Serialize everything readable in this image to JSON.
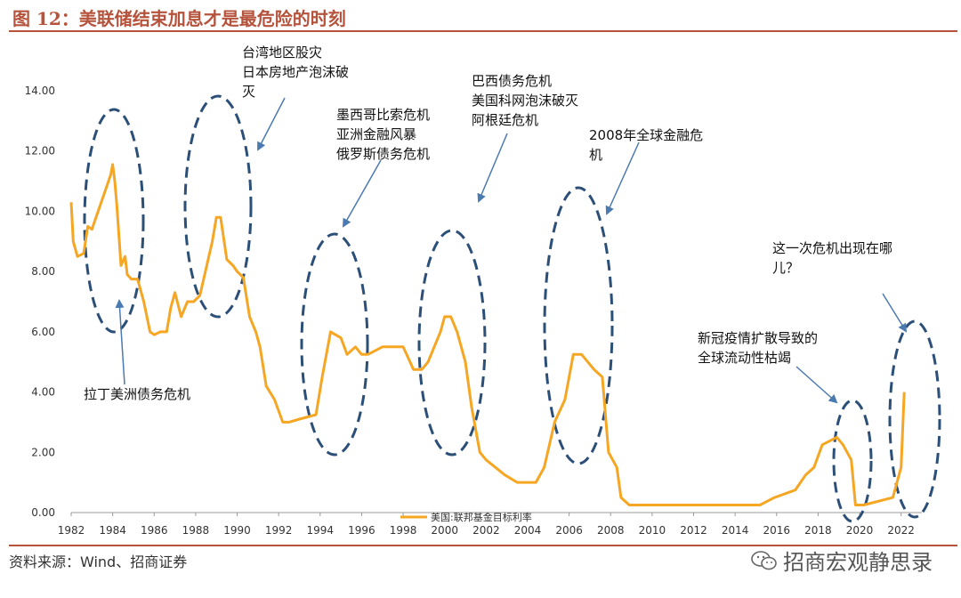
{
  "header": {
    "title": "图 12：美联储结束加息才是最危险的时刻"
  },
  "footer": {
    "source": "资料来源：Wind、招商证券",
    "watermark": "招商宏观静思录"
  },
  "colors": {
    "line": "#f5a623",
    "ellipse": "#2c4f78",
    "accent": "#b5533c"
  },
  "chart_data": {
    "type": "line",
    "title": "",
    "xlabel": "",
    "ylabel": "",
    "ylim": [
      0,
      14
    ],
    "xlim": [
      1982,
      2023
    ],
    "y_ticks": [
      "0.00",
      "2.00",
      "4.00",
      "6.00",
      "8.00",
      "10.00",
      "12.00",
      "14.00"
    ],
    "x_ticks": [
      "1982",
      "1984",
      "1986",
      "1988",
      "1990",
      "1992",
      "1994",
      "1996",
      "1998",
      "2000",
      "2002",
      "2004",
      "2006",
      "2008",
      "2010",
      "2012",
      "2014",
      "2016",
      "2018",
      "2020",
      "2022"
    ],
    "legend": {
      "position": "bottom-center",
      "entries": [
        "美国:联邦基金目标利率"
      ]
    },
    "grid": false,
    "series": [
      {
        "name": "美国:联邦基金目标利率",
        "x": [
          1982.0,
          1982.1,
          1982.3,
          1982.6,
          1982.8,
          1983.0,
          1983.3,
          1983.6,
          1983.9,
          1984.0,
          1984.1,
          1984.2,
          1984.4,
          1984.6,
          1984.7,
          1984.9,
          1985.2,
          1985.5,
          1985.8,
          1986.0,
          1986.3,
          1986.6,
          1986.8,
          1987.0,
          1987.3,
          1987.6,
          1987.9,
          1988.2,
          1988.5,
          1988.8,
          1989.0,
          1989.2,
          1989.5,
          1989.8,
          1990.0,
          1990.3,
          1990.6,
          1990.9,
          1991.1,
          1991.4,
          1991.8,
          1992.2,
          1992.5,
          1993.0,
          1993.8,
          1994.1,
          1994.5,
          1995.0,
          1995.3,
          1995.7,
          1996.0,
          1996.3,
          1997.0,
          1998.0,
          1998.5,
          1998.9,
          1999.2,
          1999.5,
          1999.8,
          2000.0,
          2000.3,
          2000.6,
          2001.0,
          2001.3,
          2001.7,
          2002.0,
          2002.9,
          2003.5,
          2004.4,
          2004.8,
          2005.3,
          2005.8,
          2006.2,
          2006.6,
          2007.2,
          2007.6,
          2007.9,
          2008.3,
          2008.5,
          2008.9,
          2015.2,
          2015.9,
          2016.9,
          2017.4,
          2017.8,
          2018.2,
          2018.9,
          2019.2,
          2019.6,
          2019.8,
          2020.2,
          2021.6,
          2022.0,
          2022.15
        ],
        "y": [
          10.3,
          9.0,
          8.5,
          8.6,
          9.5,
          9.4,
          10.0,
          10.6,
          11.2,
          11.55,
          11.0,
          10.2,
          8.2,
          8.5,
          7.9,
          7.75,
          7.75,
          7.0,
          6.0,
          5.9,
          6.0,
          6.0,
          6.8,
          7.3,
          6.5,
          7.0,
          7.0,
          7.2,
          8.1,
          9.0,
          9.8,
          9.8,
          8.4,
          8.2,
          8.0,
          7.8,
          6.5,
          6.0,
          5.5,
          4.2,
          3.75,
          3.0,
          3.0,
          3.1,
          3.25,
          4.5,
          6.0,
          5.8,
          5.25,
          5.5,
          5.25,
          5.25,
          5.5,
          5.5,
          4.75,
          4.75,
          5.0,
          5.5,
          6.0,
          6.5,
          6.5,
          6.0,
          5.0,
          3.5,
          2.0,
          1.75,
          1.25,
          1.0,
          1.0,
          1.5,
          3.0,
          3.75,
          5.25,
          5.25,
          4.75,
          4.5,
          2.0,
          1.5,
          0.5,
          0.25,
          0.25,
          0.5,
          0.75,
          1.25,
          1.5,
          2.25,
          2.5,
          2.25,
          1.75,
          0.25,
          0.25,
          0.5,
          1.5,
          4.0
        ]
      }
    ],
    "annotations": [
      {
        "lines": [
          "拉丁美洲债务危机"
        ]
      },
      {
        "lines": [
          "台湾地区股灾",
          "日本房地产泡沫破",
          "灭"
        ]
      },
      {
        "lines": [
          "墨西哥比索危机",
          "亚洲金融风暴",
          "俄罗斯债务危机"
        ]
      },
      {
        "lines": [
          "巴西债务危机",
          "美国科网泡沫破灭",
          "阿根廷危机"
        ]
      },
      {
        "lines": [
          "2008年全球金融危",
          "机"
        ]
      },
      {
        "lines": [
          "新冠疫情扩散导致的",
          "全球流动性枯竭"
        ]
      },
      {
        "lines": [
          "这一次危机出现在哪",
          "儿？"
        ]
      }
    ]
  }
}
